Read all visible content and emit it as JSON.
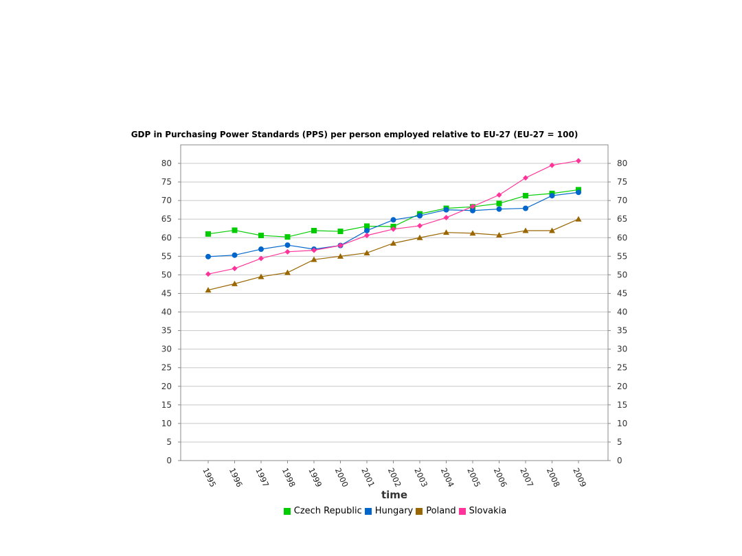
{
  "chart_data": {
    "type": "line",
    "title": "GDP in Purchasing Power Standards (PPS) per person employed relative to EU-27 (EU-27 = 100)",
    "xlabel": "time",
    "ylabel": "",
    "ylim": [
      0,
      84
    ],
    "yticks": [
      0,
      5,
      10,
      15,
      20,
      25,
      30,
      35,
      40,
      45,
      50,
      55,
      60,
      65,
      70,
      75,
      80
    ],
    "categories": [
      "1995",
      "1996",
      "1997",
      "1998",
      "1999",
      "2000",
      "2001",
      "2002",
      "2003",
      "2004",
      "2005",
      "2006",
      "2007",
      "2008",
      "2009"
    ],
    "grid": true,
    "legend_position": "bottom",
    "series": [
      {
        "name": "Czech Republic",
        "color": "#00cc00",
        "marker": "square",
        "values": [
          61.0,
          62.0,
          60.6,
          60.2,
          61.9,
          61.7,
          63.1,
          63.0,
          66.4,
          67.9,
          68.3,
          69.2,
          71.3,
          71.9,
          72.9
        ]
      },
      {
        "name": "Hungary",
        "color": "#0066cc",
        "marker": "circle",
        "values": [
          54.9,
          55.3,
          56.9,
          58.0,
          56.9,
          57.9,
          61.9,
          64.8,
          65.9,
          67.5,
          67.3,
          67.7,
          67.9,
          71.3,
          72.2
        ]
      },
      {
        "name": "Poland",
        "color": "#996600",
        "marker": "triangle",
        "values": [
          45.9,
          47.6,
          49.5,
          50.6,
          54.1,
          55.0,
          55.9,
          58.5,
          60.0,
          61.4,
          61.2,
          60.7,
          61.9,
          61.9,
          65.0
        ]
      },
      {
        "name": "Slovakia",
        "color": "#ff3399",
        "marker": "diamond",
        "values": [
          50.2,
          51.7,
          54.4,
          56.2,
          56.6,
          57.9,
          60.6,
          62.3,
          63.2,
          65.4,
          68.4,
          71.5,
          76.1,
          79.5,
          80.7
        ]
      }
    ]
  }
}
